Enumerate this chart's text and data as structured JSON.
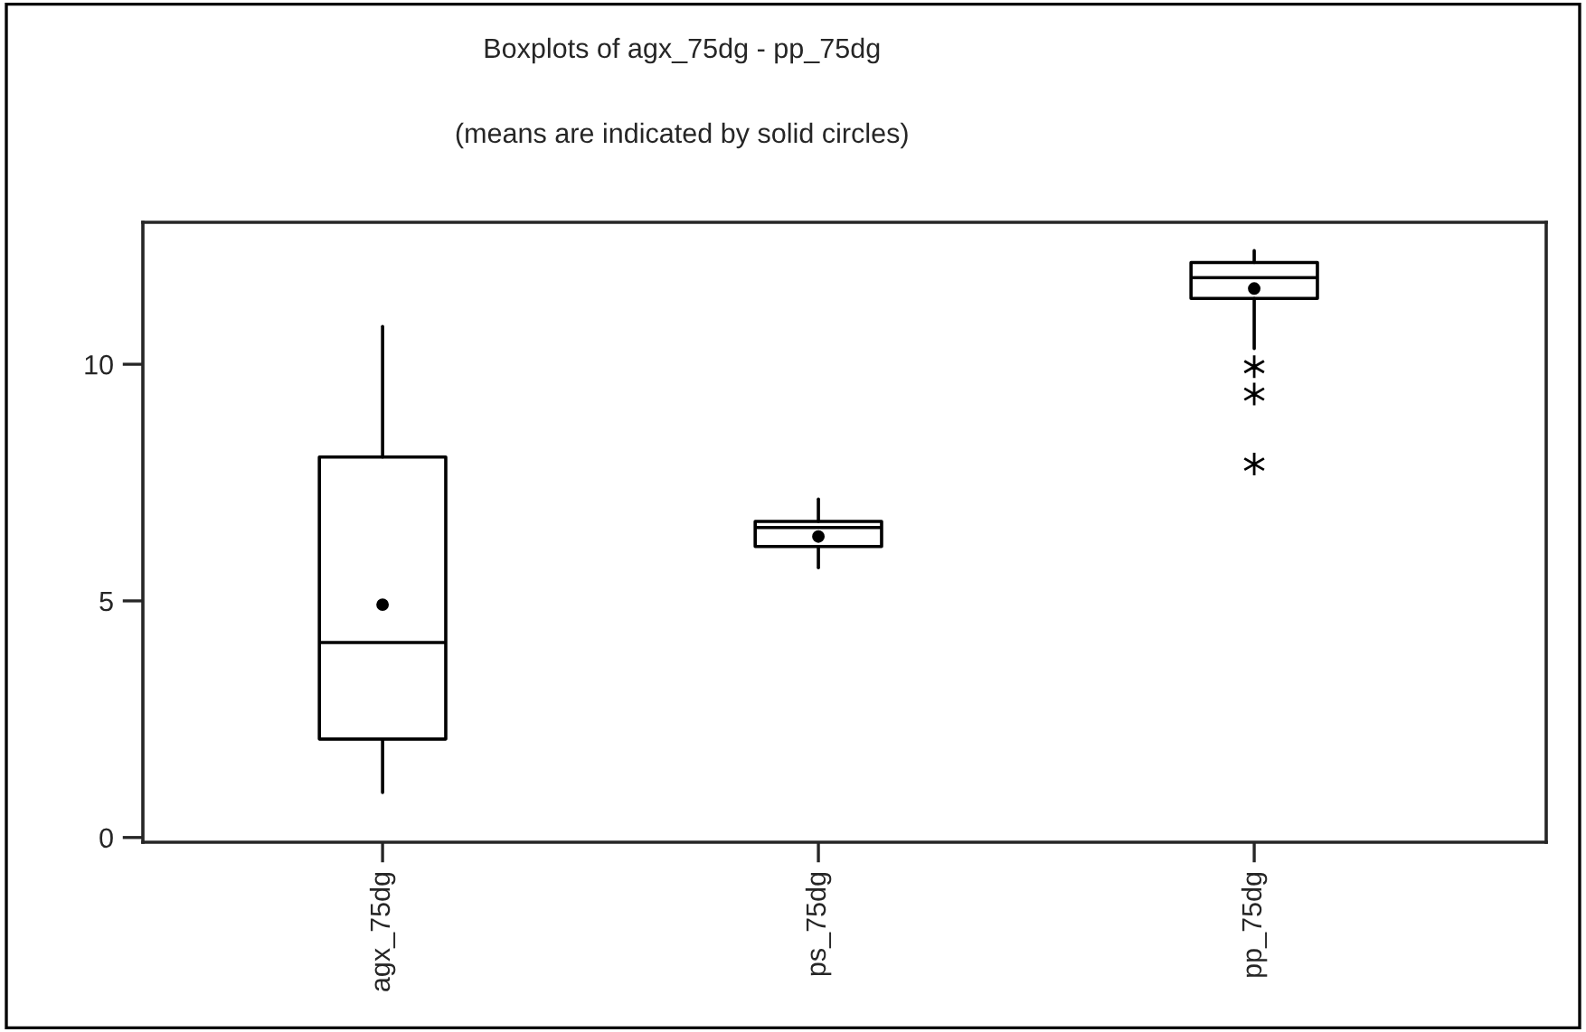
{
  "chart_data": {
    "type": "box",
    "title": "Boxplots of agx_75dg - pp_75dg",
    "subtitle": "(means are indicated by solid circles)",
    "categories": [
      "agx_75dg",
      "ps_75dg",
      "pp_75dg"
    ],
    "boxes": [
      {
        "low": 0.95,
        "q1": 2.08,
        "median": 4.12,
        "q3": 8.04,
        "high": 10.8,
        "mean": 4.92
      },
      {
        "low": 5.7,
        "q1": 6.15,
        "median": 6.55,
        "q3": 6.68,
        "high": 7.15,
        "mean": 6.36
      },
      {
        "low": 10.33,
        "q1": 11.39,
        "median": 11.83,
        "q3": 12.15,
        "high": 12.4,
        "mean": 11.6,
        "outliers": [
          9.95,
          9.37,
          7.89
        ]
      }
    ],
    "ylim": [
      -0.1,
      13
    ],
    "yticks": [
      0,
      5,
      10
    ]
  }
}
